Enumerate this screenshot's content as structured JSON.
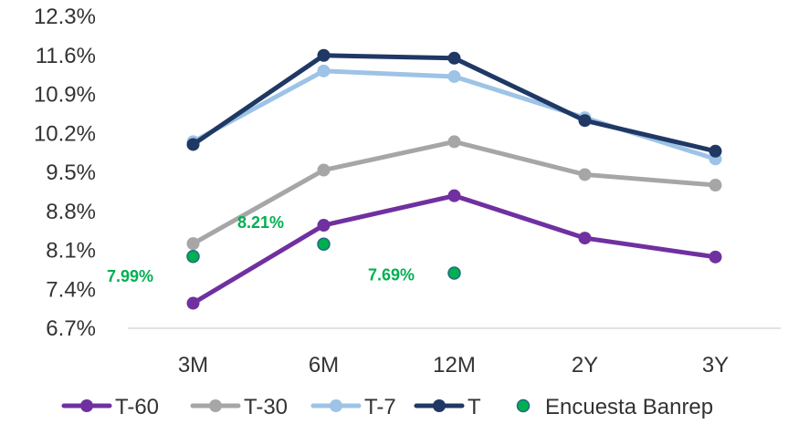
{
  "chart_data": {
    "type": "line",
    "categories": [
      "3M",
      "6M",
      "12M",
      "2Y",
      "3Y"
    ],
    "yticks": [
      "6.7%",
      "7.4%",
      "8.1%",
      "8.8%",
      "9.5%",
      "10.2%",
      "10.9%",
      "11.6%",
      "12.3%"
    ],
    "ylim": [
      6.7,
      12.3
    ],
    "grid": false,
    "legend_position": "bottom",
    "series": [
      {
        "name": "T-60",
        "color": "#7030A0",
        "values": [
          7.15,
          8.55,
          9.08,
          8.32,
          7.98
        ]
      },
      {
        "name": "T-30",
        "color": "#A6A6A6",
        "values": [
          8.22,
          9.54,
          10.05,
          9.46,
          9.27
        ]
      },
      {
        "name": "T-7",
        "color": "#9DC3E6",
        "values": [
          10.05,
          11.32,
          11.22,
          10.48,
          9.74
        ]
      },
      {
        "name": "T",
        "color": "#1F3864",
        "values": [
          10.0,
          11.6,
          11.55,
          10.43,
          9.88
        ]
      }
    ],
    "survey": {
      "name": "Encuesta Banrep",
      "color": "#00B050",
      "points": [
        {
          "category": "3M",
          "value": 7.99,
          "label": "7.99%"
        },
        {
          "category": "6M",
          "value": 8.21,
          "label": "8.21%"
        },
        {
          "category": "12M",
          "value": 7.69,
          "label": "7.69%"
        }
      ]
    }
  }
}
